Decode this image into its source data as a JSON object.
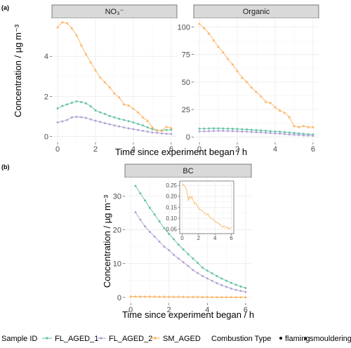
{
  "panel_a_tag": "(a)",
  "panel_b_tag": "(b)",
  "chart_data": [
    {
      "type": "line",
      "facet": "NO3-",
      "title": "NO₃⁻",
      "xlabel": "Time since experiment began / h",
      "ylabel": "Concentration / µg m⁻³",
      "xlim": [
        -0.3,
        6.3
      ],
      "ylim": [
        -0.3,
        5.9
      ],
      "xticks": [
        0,
        2,
        4,
        6
      ],
      "yticks": [
        0,
        2,
        4
      ],
      "grid": true,
      "series": [
        {
          "name": "FL_AGED_1",
          "marker": "flaming",
          "x": [
            0,
            0.25,
            0.5,
            0.75,
            1,
            1.25,
            1.5,
            1.75,
            2,
            2.25,
            2.5,
            2.75,
            3,
            3.25,
            3.5,
            3.75,
            4,
            4.25,
            4.5,
            4.75,
            5,
            5.25,
            5.5,
            5.75,
            6
          ],
          "y": [
            1.4,
            1.52,
            1.6,
            1.68,
            1.75,
            1.72,
            1.65,
            1.5,
            1.3,
            1.2,
            1.12,
            1.02,
            0.95,
            0.88,
            0.82,
            0.76,
            0.7,
            0.62,
            0.55,
            0.45,
            0.36,
            0.3,
            0.3,
            0.32,
            0.33
          ]
        },
        {
          "name": "FL_AGED_2",
          "marker": "flaming",
          "x": [
            0,
            0.25,
            0.5,
            0.75,
            1,
            1.25,
            1.5,
            1.75,
            2,
            2.25,
            2.5,
            2.75,
            3,
            3.25,
            3.5,
            3.75,
            4,
            4.25,
            4.5,
            4.75,
            5,
            5.25,
            5.5,
            5.75,
            6
          ],
          "y": [
            0.7,
            0.75,
            0.82,
            0.95,
            0.98,
            0.96,
            0.92,
            0.85,
            0.78,
            0.72,
            0.66,
            0.6,
            0.55,
            0.5,
            0.45,
            0.4,
            0.36,
            0.32,
            0.28,
            0.24,
            0.2,
            0.18,
            0.15,
            0.13,
            0.12
          ]
        },
        {
          "name": "SM_AGED",
          "marker": "smouldering",
          "x": [
            0,
            0.25,
            0.5,
            0.75,
            1,
            1.25,
            1.5,
            1.75,
            2,
            2.25,
            2.5,
            2.75,
            3,
            3.25,
            3.5,
            3.75,
            4,
            4.25,
            4.5,
            4.75,
            5,
            5.25,
            5.5,
            5.75,
            6
          ],
          "y": [
            5.45,
            5.7,
            5.65,
            5.4,
            5.05,
            4.55,
            4.1,
            3.7,
            3.3,
            2.95,
            2.7,
            2.45,
            2.15,
            1.95,
            1.6,
            1.55,
            1.38,
            1.2,
            0.95,
            0.78,
            0.45,
            0.3,
            0.28,
            0.48,
            0.42
          ]
        }
      ]
    },
    {
      "type": "line",
      "facet": "Organic",
      "title": "Organic",
      "xlabel": "Time since experiment began / h",
      "ylabel": "Concentration / µg m⁻³",
      "xlim": [
        -0.3,
        6.3
      ],
      "ylim": [
        -5,
        108
      ],
      "xticks": [
        0,
        2,
        4,
        6
      ],
      "yticks": [
        0,
        25,
        50,
        75,
        100
      ],
      "grid": true,
      "series": [
        {
          "name": "FL_AGED_1",
          "marker": "flaming",
          "x": [
            0,
            0.25,
            0.5,
            0.75,
            1,
            1.25,
            1.5,
            1.75,
            2,
            2.25,
            2.5,
            2.75,
            3,
            3.25,
            3.5,
            3.75,
            4,
            4.25,
            4.5,
            4.75,
            5,
            5.25,
            5.5,
            5.75,
            6
          ],
          "y": [
            7.5,
            7.6,
            7.7,
            7.8,
            7.8,
            7.7,
            7.6,
            7.4,
            7.2,
            7,
            6.8,
            6.5,
            6.2,
            5.9,
            5.6,
            5.3,
            5,
            4.7,
            4.4,
            4,
            3.6,
            3.2,
            2.8,
            2.5,
            2.2
          ]
        },
        {
          "name": "FL_AGED_2",
          "marker": "flaming",
          "x": [
            0,
            0.25,
            0.5,
            0.75,
            1,
            1.25,
            1.5,
            1.75,
            2,
            2.25,
            2.5,
            2.75,
            3,
            3.25,
            3.5,
            3.75,
            4,
            4.25,
            4.5,
            4.75,
            5,
            5.25,
            5.5,
            5.75,
            6
          ],
          "y": [
            5,
            5.1,
            5.2,
            5.4,
            5.5,
            5.5,
            5.4,
            5.3,
            5.1,
            4.9,
            4.7,
            4.5,
            4.3,
            4.1,
            3.8,
            3.5,
            3.2,
            2.9,
            2.6,
            2.3,
            2,
            1.8,
            1.5,
            1.3,
            1.1
          ]
        },
        {
          "name": "SM_AGED",
          "marker": "smouldering",
          "x": [
            0,
            0.25,
            0.5,
            0.75,
            1,
            1.25,
            1.5,
            1.75,
            2,
            2.25,
            2.5,
            2.75,
            3,
            3.25,
            3.5,
            3.75,
            4,
            4.25,
            4.5,
            4.75,
            5,
            5.25,
            5.5,
            5.75,
            6
          ],
          "y": [
            103,
            99,
            94,
            88,
            82,
            77,
            71,
            66,
            60,
            54,
            50,
            45,
            41,
            37,
            32,
            31,
            27,
            24,
            22,
            18,
            10,
            9,
            10,
            9,
            9
          ]
        }
      ]
    },
    {
      "type": "line",
      "facet": "BC",
      "title": "BC",
      "xlabel": "Time since experiment began / h",
      "ylabel": "Concentration / µg m⁻³",
      "xlim": [
        -0.3,
        6.3
      ],
      "ylim": [
        -1.7,
        35.5
      ],
      "xticks": [
        0,
        2,
        4,
        6
      ],
      "yticks": [
        0,
        10,
        20,
        30
      ],
      "grid": true,
      "series": [
        {
          "name": "FL_AGED_1",
          "marker": "flaming",
          "x": [
            0.25,
            0.5,
            0.75,
            1,
            1.25,
            1.5,
            1.75,
            2,
            2.25,
            2.5,
            2.75,
            3,
            3.25,
            3.5,
            3.75,
            4,
            4.25,
            4.5,
            4.75,
            5,
            5.25,
            5.5,
            5.75,
            6
          ],
          "y": [
            33,
            30.8,
            28.7,
            26.5,
            24.5,
            22.5,
            20.5,
            18.8,
            17.2,
            15.6,
            14.2,
            12.8,
            11.5,
            10.2,
            8.8,
            7.9,
            7.1,
            6.3,
            5.6,
            4.9,
            4.3,
            3.7,
            3.2,
            2.8
          ]
        },
        {
          "name": "FL_AGED_2",
          "marker": "flaming",
          "x": [
            0.25,
            0.5,
            0.75,
            1,
            1.25,
            1.5,
            1.75,
            2,
            2.25,
            2.5,
            2.75,
            3,
            3.25,
            3.5,
            3.75,
            4,
            4.25,
            4.5,
            4.75,
            5,
            5.25,
            5.5,
            5.75,
            6
          ],
          "y": [
            25.2,
            23,
            21,
            19.4,
            18,
            16.5,
            15,
            14,
            12.6,
            11.5,
            10.4,
            9.3,
            8.1,
            7.2,
            6.3,
            5.6,
            4.9,
            4.2,
            3.6,
            3.1,
            2.6,
            2.2,
            1.9,
            1.6
          ]
        },
        {
          "name": "SM_AGED",
          "marker": "smouldering",
          "x": [
            0,
            0.25,
            0.5,
            0.75,
            1,
            1.25,
            1.5,
            1.75,
            2,
            2.25,
            2.5,
            2.75,
            3,
            3.25,
            3.5,
            3.75,
            4,
            4.25,
            4.5,
            4.75,
            5,
            5.25,
            5.5,
            5.75,
            6
          ],
          "y": [
            0.26,
            0.25,
            0.24,
            0.23,
            0.22,
            0.21,
            0.2,
            0.19,
            0.18,
            0.17,
            0.16,
            0.15,
            0.14,
            0.13,
            0.12,
            0.11,
            0.1,
            0.09,
            0.08,
            0.07,
            0.06,
            0.06,
            0.05,
            0.05,
            0.05
          ]
        }
      ]
    },
    {
      "type": "line",
      "facet": "BC inset",
      "title": "",
      "xlim": [
        -0.3,
        6.3
      ],
      "ylim": [
        0.03,
        0.27
      ],
      "xticks": [
        0,
        2,
        4,
        6
      ],
      "yticks": [
        0.05,
        0.1,
        0.15,
        0.2,
        0.25
      ],
      "ytick_labels": [
        "0.05",
        "0.10",
        "0.15",
        "0.20",
        "0.25"
      ],
      "grid": true,
      "series": [
        {
          "name": "SM_AGED",
          "x": [
            0,
            0.15,
            0.3,
            0.45,
            0.6,
            0.75,
            0.9,
            1.05,
            1.2,
            1.35,
            1.5,
            1.65,
            1.8,
            1.95,
            2.1,
            2.25,
            2.4,
            2.55,
            2.7,
            2.85,
            3,
            3.15,
            3.3,
            3.45,
            3.6,
            3.75,
            3.9,
            4.05,
            4.2,
            4.35,
            4.5,
            4.65,
            4.8,
            4.95,
            5.1,
            5.25,
            5.4,
            5.55,
            5.7,
            5.85,
            6
          ],
          "y": [
            0.25,
            0.255,
            0.245,
            0.24,
            0.22,
            0.18,
            0.2,
            0.19,
            0.2,
            0.18,
            0.165,
            0.17,
            0.16,
            0.15,
            0.14,
            0.14,
            0.135,
            0.13,
            0.125,
            0.12,
            0.115,
            0.12,
            0.11,
            0.1,
            0.1,
            0.095,
            0.09,
            0.085,
            0.08,
            0.08,
            0.075,
            0.07,
            0.065,
            0.06,
            0.065,
            0.06,
            0.055,
            0.06,
            0.05,
            0.055,
            0.06
          ]
        }
      ]
    }
  ],
  "legend": {
    "sample_title": "Sample ID",
    "sample_items": [
      {
        "label": "FL_AGED_1",
        "color": "#66c2a5"
      },
      {
        "label": "FL_AGED_2",
        "color": "#b3a2d6"
      },
      {
        "label": "SM_AGED",
        "color": "#fdb462"
      }
    ],
    "combustion_title": "Combustion Type",
    "combustion_items": [
      {
        "label": "flaming",
        "shape": "circle"
      },
      {
        "label": "smouldering",
        "shape": "triangle"
      }
    ]
  },
  "colors": {
    "FL_AGED_1": "#66c2a5",
    "FL_AGED_2": "#b3a2d6",
    "SM_AGED": "#fdb462",
    "strip_fill": "#d9d9d9",
    "grid": "#ebebeb"
  }
}
